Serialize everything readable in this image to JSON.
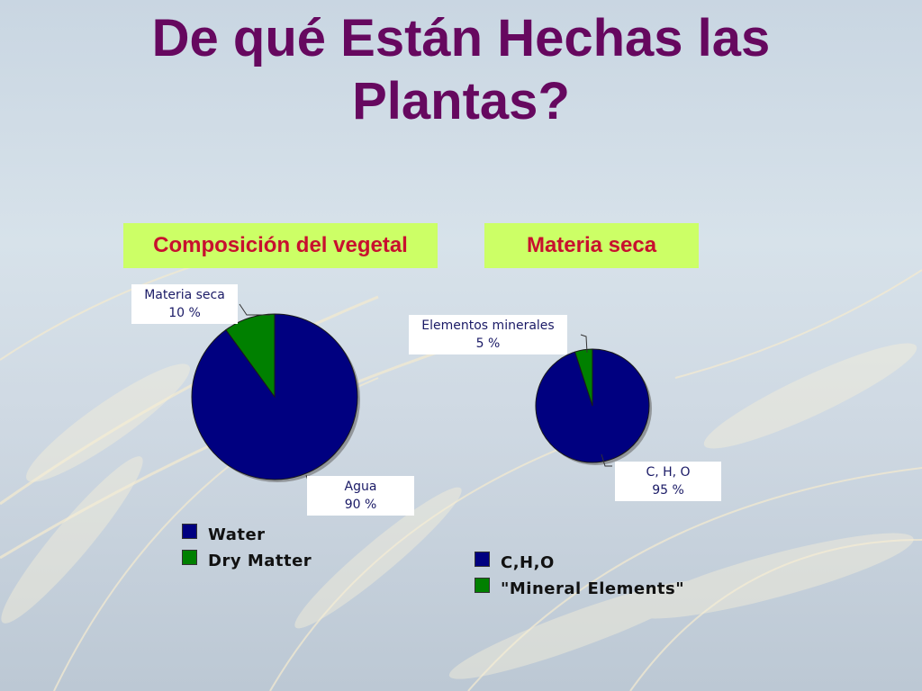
{
  "slide": {
    "title_line1": "De qué Están Hechas las",
    "title_line2": "Plantas?"
  },
  "colors": {
    "title": "#66085f",
    "chart_title_bg": "#ccff66",
    "chart_title_text": "#c8102e",
    "series_blue": "#000080",
    "series_green": "#008000"
  },
  "chart_data": [
    {
      "type": "pie",
      "title": "Composición del vegetal",
      "slices": [
        {
          "label": "Agua",
          "value": 90,
          "display": "90 %",
          "color": "#000080"
        },
        {
          "label": "Materia seca",
          "value": 10,
          "display": "10 %",
          "color": "#008000"
        }
      ],
      "legend": [
        "Water",
        "Dry Matter"
      ]
    },
    {
      "type": "pie",
      "title": "Materia seca",
      "slices": [
        {
          "label": "C, H, O",
          "value": 95,
          "display": "95 %",
          "color": "#000080"
        },
        {
          "label": "Elementos minerales",
          "value": 5,
          "display": "5 %",
          "color": "#008000"
        }
      ],
      "legend": [
        "C,H,O",
        "\"Mineral Elements\""
      ]
    }
  ]
}
